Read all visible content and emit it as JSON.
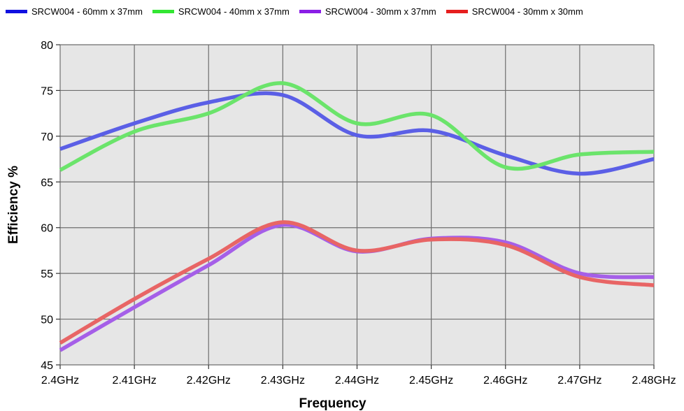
{
  "chart_data": {
    "type": "line",
    "title": "",
    "xlabel": "Frequency",
    "ylabel": "Efficiency %",
    "x": [
      2.4,
      2.41,
      2.42,
      2.43,
      2.44,
      2.45,
      2.46,
      2.47,
      2.48
    ],
    "x_tick_labels": [
      "2.4GHz",
      "2.41GHz",
      "2.42GHz",
      "2.43GHz",
      "2.44GHz",
      "2.45GHz",
      "2.46GHz",
      "2.47GHz",
      "2.48GHz"
    ],
    "y_ticks": [
      45,
      50,
      55,
      60,
      65,
      70,
      75,
      80
    ],
    "xlim": [
      2.4,
      2.48
    ],
    "ylim": [
      45,
      80
    ],
    "grid": true,
    "legend_position": "top",
    "series": [
      {
        "name": "SRCW004 - 60mm x 37mm",
        "color": "#5b5fe6",
        "legend_color": "#1010e0",
        "values": [
          68.6,
          71.4,
          73.7,
          74.5,
          70.1,
          70.6,
          67.9,
          65.9,
          67.5
        ]
      },
      {
        "name": "SRCW004 - 40mm x 37mm",
        "color": "#6be46b",
        "legend_color": "#33e633",
        "values": [
          66.3,
          70.5,
          72.5,
          75.8,
          71.4,
          72.3,
          66.6,
          68.0,
          68.3
        ]
      },
      {
        "name": "SRCW004 - 30mm x 37mm",
        "color": "#a55fe8",
        "legend_color": "#8a1ee6",
        "values": [
          46.6,
          51.3,
          55.9,
          60.3,
          57.4,
          58.8,
          58.4,
          55.0,
          54.6
        ]
      },
      {
        "name": "SRCW004 - 30mm x 30mm",
        "color": "#e86565",
        "legend_color": "#e61e1e",
        "values": [
          47.4,
          52.2,
          56.6,
          60.6,
          57.5,
          58.7,
          58.1,
          54.6,
          53.7
        ]
      }
    ]
  }
}
